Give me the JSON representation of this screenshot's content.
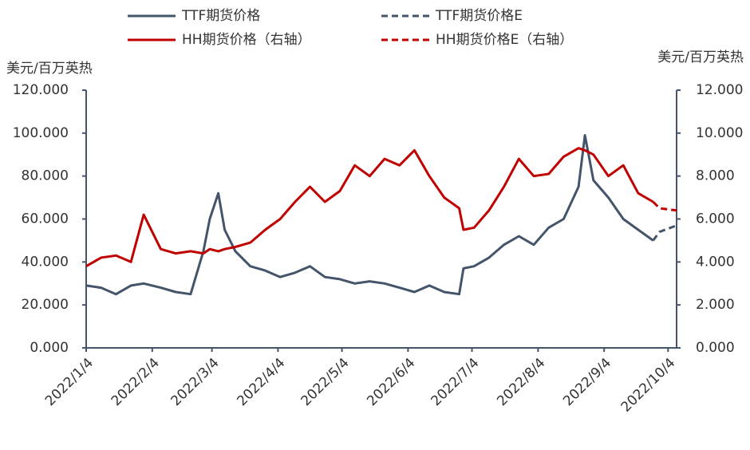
{
  "chart_data": {
    "type": "line",
    "y_label": "美元/百万英热",
    "y2_label": "美元/百万英热",
    "x": [
      "2022/1/4",
      "2022/1/11",
      "2022/1/18",
      "2022/1/25",
      "2022/1/31",
      "2022/2/8",
      "2022/2/15",
      "2022/2/22",
      "2022/2/28",
      "2022/3/3",
      "2022/3/7",
      "2022/3/10",
      "2022/3/15",
      "2022/3/22",
      "2022/3/29",
      "2022/4/5",
      "2022/4/12",
      "2022/4/19",
      "2022/4/26",
      "2022/5/3",
      "2022/5/10",
      "2022/5/17",
      "2022/5/24",
      "2022/5/31",
      "2022/6/7",
      "2022/6/14",
      "2022/6/21",
      "2022/6/28",
      "2022/6/30",
      "2022/7/5",
      "2022/7/12",
      "2022/7/19",
      "2022/7/26",
      "2022/8/2",
      "2022/8/9",
      "2022/8/16",
      "2022/8/23",
      "2022/8/26",
      "2022/8/30",
      "2022/9/6",
      "2022/9/13",
      "2022/9/20",
      "2022/9/27",
      "2022/9/30",
      "2022/10/8"
    ],
    "xlim": [
      "2022/1/4",
      "2022/10/8"
    ],
    "xticks": [
      "2022/1/4",
      "2022/2/4",
      "2022/3/4",
      "2022/4/4",
      "2022/5/4",
      "2022/6/4",
      "2022/7/4",
      "2022/8/4",
      "2022/9/4",
      "2022/10/4"
    ],
    "ylim": [
      0,
      120
    ],
    "yticks": [
      {
        "value": 0,
        "label": "0.000"
      },
      {
        "value": 20,
        "label": "20.000"
      },
      {
        "value": 40,
        "label": "40.000"
      },
      {
        "value": 60,
        "label": "60.000"
      },
      {
        "value": 80,
        "label": "80.000"
      },
      {
        "value": 100,
        "label": "100.000"
      },
      {
        "value": 120,
        "label": "120.000"
      }
    ],
    "y2lim": [
      0,
      12
    ],
    "y2ticks": [
      {
        "value": 0,
        "label": "0.000"
      },
      {
        "value": 2,
        "label": "2.000"
      },
      {
        "value": 4,
        "label": "4.000"
      },
      {
        "value": 6,
        "label": "6.000"
      },
      {
        "value": 8,
        "label": "8.000"
      },
      {
        "value": 10,
        "label": "10.000"
      },
      {
        "value": 12,
        "label": "12.000"
      }
    ],
    "series": [
      {
        "name": "TTF期货价格",
        "color": "#44546a",
        "dashed": false,
        "values": [
          29,
          28,
          25,
          29,
          30,
          28,
          26,
          25,
          45,
          60,
          72,
          55,
          45,
          38,
          36,
          33,
          35,
          38,
          33,
          32,
          30,
          31,
          30,
          28,
          26,
          29,
          26,
          25,
          37,
          38,
          42,
          48,
          52,
          48,
          56,
          60,
          75,
          99,
          78,
          70,
          60,
          55,
          50,
          null,
          null
        ]
      },
      {
        "name": "TTF期货价格E",
        "color": "#44546a",
        "dashed": true,
        "values": [
          null,
          null,
          null,
          null,
          null,
          null,
          null,
          null,
          null,
          null,
          null,
          null,
          null,
          null,
          null,
          null,
          null,
          null,
          null,
          null,
          null,
          null,
          null,
          null,
          null,
          null,
          null,
          null,
          null,
          null,
          null,
          null,
          null,
          null,
          null,
          null,
          null,
          null,
          null,
          null,
          null,
          null,
          50,
          54,
          57
        ]
      },
      {
        "name": "HH期货价格（右轴）",
        "color": "#c00000",
        "dashed": false,
        "axis": "y2",
        "values": [
          3.8,
          4.2,
          4.3,
          4.0,
          6.2,
          4.6,
          4.4,
          4.5,
          4.4,
          4.6,
          4.5,
          4.6,
          4.7,
          4.9,
          5.5,
          6.0,
          6.8,
          7.5,
          6.8,
          7.3,
          8.5,
          8.0,
          8.8,
          8.5,
          9.2,
          8.0,
          7.0,
          6.5,
          5.5,
          5.6,
          6.4,
          7.5,
          8.8,
          8.0,
          8.1,
          8.9,
          9.3,
          9.2,
          9.0,
          8.0,
          8.5,
          7.2,
          6.8,
          null,
          null
        ]
      },
      {
        "name": "HH期货价格E（右轴）",
        "color": "#c00000",
        "dashed": true,
        "axis": "y2",
        "values": [
          null,
          null,
          null,
          null,
          null,
          null,
          null,
          null,
          null,
          null,
          null,
          null,
          null,
          null,
          null,
          null,
          null,
          null,
          null,
          null,
          null,
          null,
          null,
          null,
          null,
          null,
          null,
          null,
          null,
          null,
          null,
          null,
          null,
          null,
          null,
          null,
          null,
          null,
          null,
          null,
          null,
          null,
          6.8,
          6.5,
          6.4
        ]
      }
    ]
  }
}
